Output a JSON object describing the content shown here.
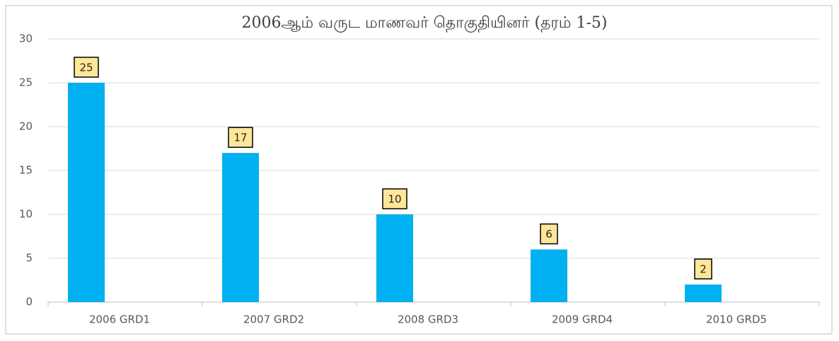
{
  "chart_data": {
    "type": "bar",
    "title": "2006ஆம் வருட மாணவர் தொகுதியினர் (தரம் 1-5)",
    "categories": [
      "2006 GRD1",
      "2007 GRD2",
      "2008 GRD3",
      "2009 GRD4",
      "2010 GRD5"
    ],
    "values": [
      25,
      17,
      10,
      6,
      2
    ],
    "color": "#00b0f0",
    "ylim": [
      0,
      30
    ],
    "yticks": [
      0,
      5,
      10,
      15,
      20,
      25,
      30
    ],
    "grid": true
  }
}
